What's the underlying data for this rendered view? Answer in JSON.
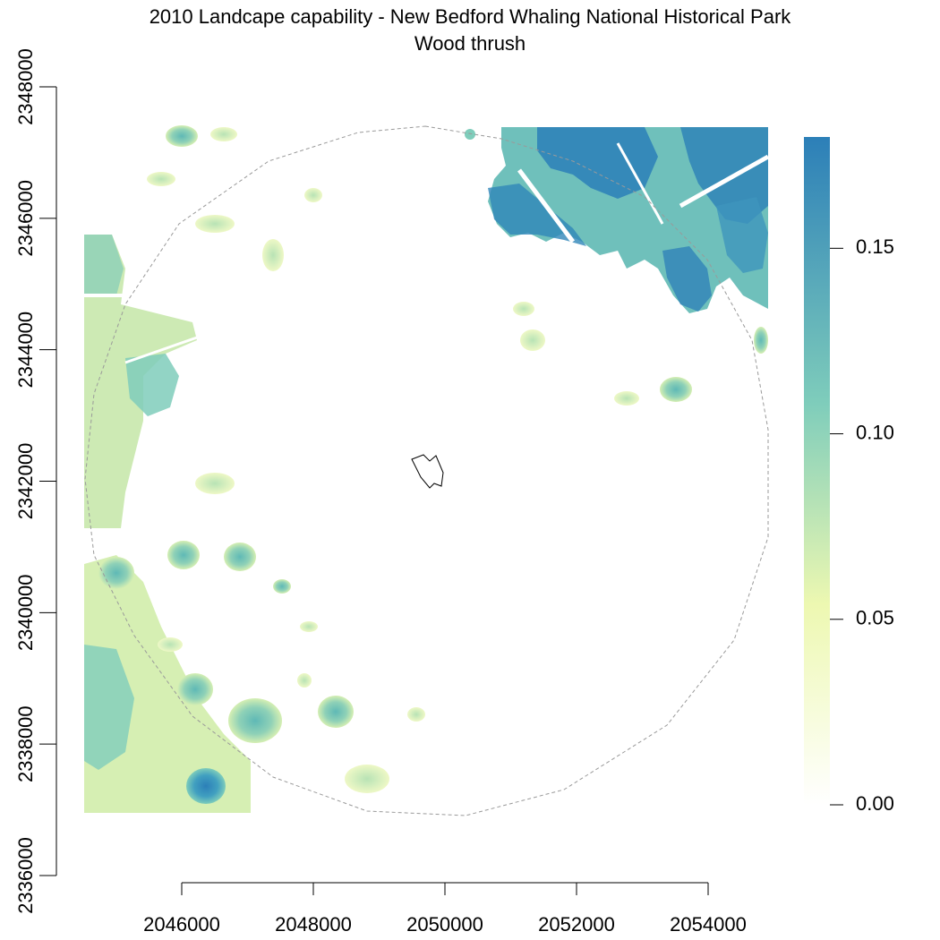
{
  "title": "2010 Landcape capability - New Bedford Whaling National Historical Park",
  "subtitle": "Wood thrush",
  "map": {
    "x_ticks": [
      "2046000",
      "2048000",
      "2050000",
      "2052000",
      "2054000"
    ],
    "y_ticks": [
      "2336000",
      "2338000",
      "2340000",
      "2342000",
      "2344000",
      "2346000",
      "2348000"
    ],
    "x_range": [
      2044500,
      2054900
    ],
    "y_range": [
      2336900,
      2347400
    ],
    "buffer_boundary": "dashed circle",
    "park_boundary": "small outlined polygon near center",
    "colors": {
      "low": "#ffffff",
      "mid_low": "#edf8b1",
      "mid": "#7fcdbb",
      "high": "#2c7fb8",
      "boundary_dashed": "#9a9a9a",
      "park_outline": "#000000"
    }
  },
  "legend": {
    "labels": [
      "0.00",
      "0.05",
      "0.10",
      "0.15"
    ],
    "range": [
      0,
      0.18
    ]
  }
}
